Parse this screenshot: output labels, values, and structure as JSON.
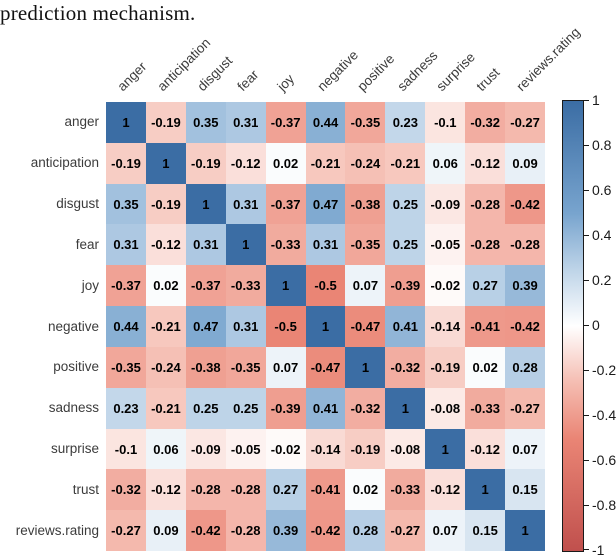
{
  "caption": "prediction mechanism.",
  "chart_data": {
    "type": "heatmap",
    "title": "",
    "xlabel": "",
    "ylabel": "",
    "categories": [
      "anger",
      "anticipation",
      "disgust",
      "fear",
      "joy",
      "negative",
      "positive",
      "sadness",
      "surprise",
      "trust",
      "reviews.rating"
    ],
    "matrix": [
      [
        1,
        -0.19,
        0.35,
        0.31,
        -0.37,
        0.44,
        -0.35,
        0.23,
        -0.1,
        -0.32,
        -0.27
      ],
      [
        -0.19,
        1,
        -0.19,
        -0.12,
        0.02,
        -0.21,
        -0.24,
        -0.21,
        0.06,
        -0.12,
        0.09
      ],
      [
        0.35,
        -0.19,
        1,
        0.31,
        -0.37,
        0.47,
        -0.38,
        0.25,
        -0.09,
        -0.28,
        -0.42
      ],
      [
        0.31,
        -0.12,
        0.31,
        1,
        -0.33,
        0.31,
        -0.35,
        0.25,
        -0.05,
        -0.28,
        -0.28
      ],
      [
        -0.37,
        0.02,
        -0.37,
        -0.33,
        1,
        -0.5,
        0.07,
        -0.39,
        -0.02,
        0.27,
        0.39
      ],
      [
        0.44,
        -0.21,
        0.47,
        0.31,
        -0.5,
        1,
        -0.47,
        0.41,
        -0.14,
        -0.41,
        -0.42
      ],
      [
        -0.35,
        -0.24,
        -0.38,
        -0.35,
        0.07,
        -0.47,
        1,
        -0.32,
        -0.19,
        0.02,
        0.28
      ],
      [
        0.23,
        -0.21,
        0.25,
        0.25,
        -0.39,
        0.41,
        -0.32,
        1,
        -0.08,
        -0.33,
        -0.27
      ],
      [
        -0.1,
        0.06,
        -0.09,
        -0.05,
        -0.02,
        -0.14,
        -0.19,
        -0.08,
        1,
        -0.12,
        0.07
      ],
      [
        -0.32,
        -0.12,
        -0.28,
        -0.28,
        0.27,
        -0.41,
        0.02,
        -0.33,
        -0.12,
        1,
        0.15
      ],
      [
        -0.27,
        0.09,
        -0.42,
        -0.28,
        0.39,
        -0.42,
        0.28,
        -0.27,
        0.07,
        0.15,
        1
      ]
    ],
    "colorbar": {
      "min": -1,
      "max": 1,
      "tick_labels": [
        "1",
        "0.8",
        "0.6",
        "0.4",
        "0.2",
        "0",
        "-0.2",
        "-0.4",
        "-0.6",
        "-0.8",
        "-1"
      ]
    },
    "colors": {
      "stops": [
        {
          "v": -1.0,
          "c": "#C0504D"
        },
        {
          "v": -0.5,
          "c": "#EA8575"
        },
        {
          "v": -0.25,
          "c": "#F5BDB2"
        },
        {
          "v": 0.0,
          "c": "#FFFFFF"
        },
        {
          "v": 0.25,
          "c": "#BED4E8"
        },
        {
          "v": 0.5,
          "c": "#78A4CE"
        },
        {
          "v": 1.0,
          "c": "#3B6DA4"
        }
      ]
    },
    "legend_position": "right-colorbar",
    "grid": false
  }
}
